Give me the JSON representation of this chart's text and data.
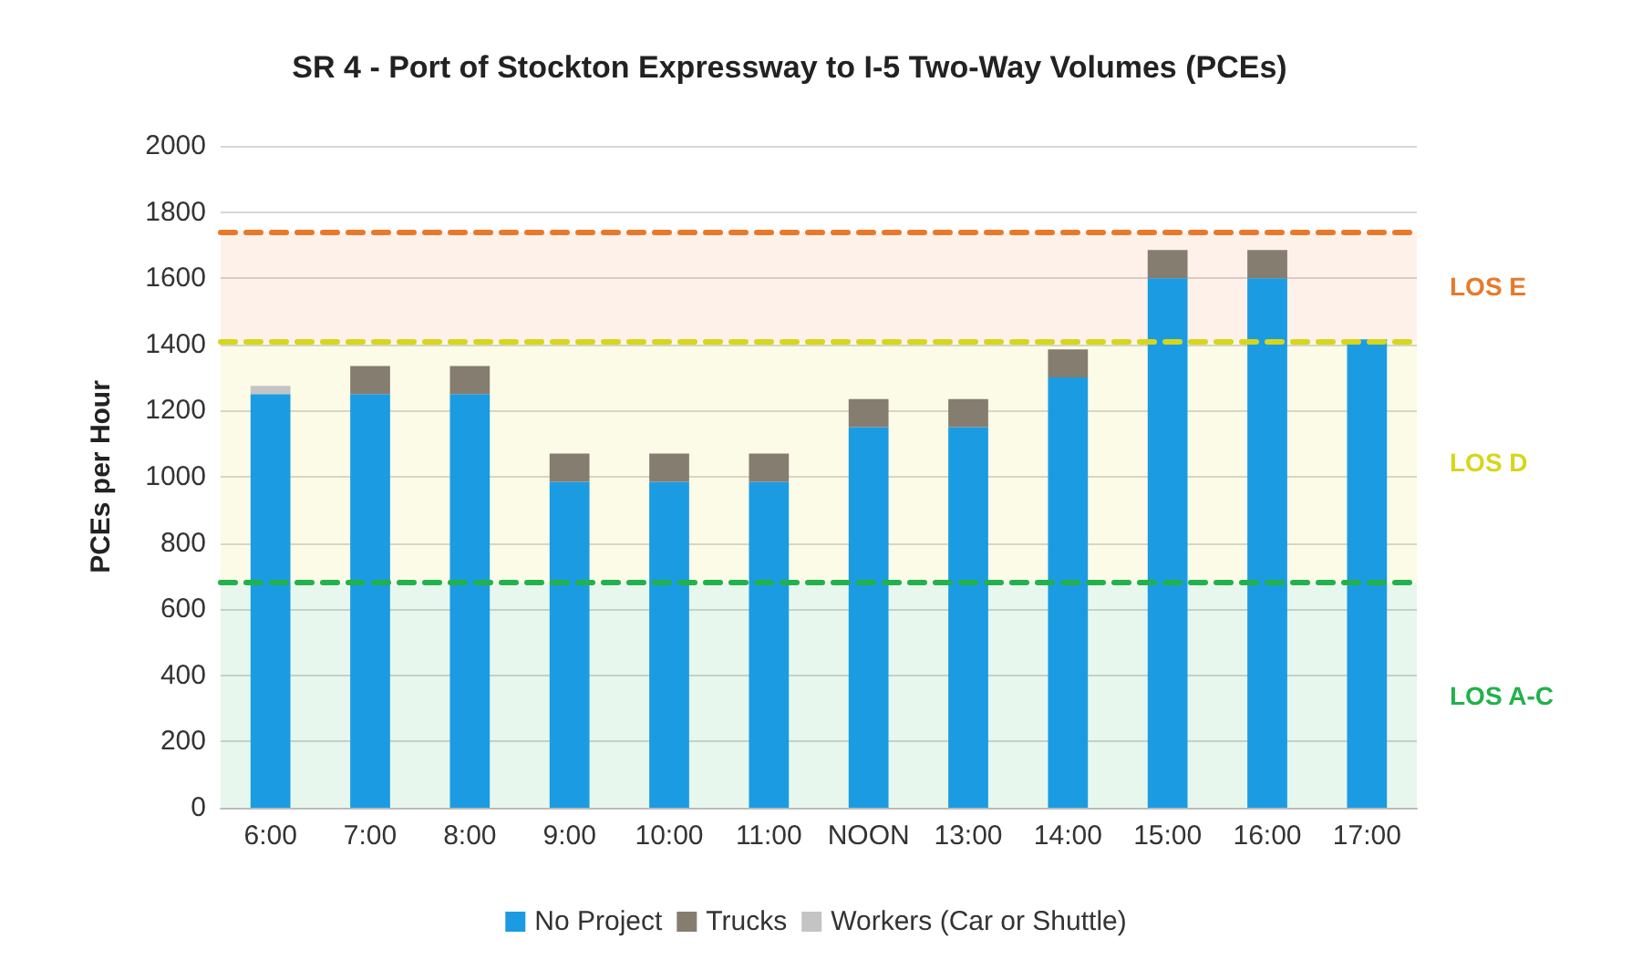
{
  "chart_data": {
    "type": "bar",
    "title": "SR 4 - Port of Stockton Expressway to I-5 Two-Way Volumes (PCEs)",
    "ylabel": "PCEs per Hour",
    "categories": [
      "6:00",
      "7:00",
      "8:00",
      "9:00",
      "10:00",
      "11:00",
      "NOON",
      "13:00",
      "14:00",
      "15:00",
      "16:00",
      "17:00"
    ],
    "stacked": true,
    "series": [
      {
        "name": "No Project",
        "color": "#1b9ce2",
        "values": [
          1250,
          1250,
          1250,
          985,
          985,
          985,
          1150,
          1150,
          1300,
          1600,
          1600,
          1415
        ]
      },
      {
        "name": "Trucks",
        "color": "#857d70",
        "values": [
          0,
          85,
          85,
          85,
          85,
          85,
          85,
          85,
          85,
          85,
          85,
          0
        ]
      },
      {
        "name": "Workers (Car or Shuttle)",
        "color": "#c4c4c4",
        "values": [
          25,
          0,
          0,
          0,
          0,
          0,
          0,
          0,
          0,
          0,
          0,
          0
        ]
      }
    ],
    "ylim": [
      0,
      2000
    ],
    "yticks": [
      0,
      200,
      400,
      600,
      800,
      1000,
      1200,
      1400,
      1600,
      1800,
      2000
    ],
    "grid": "y",
    "legend": "bottom",
    "ref_lines": [
      {
        "axis": "y",
        "value": 1740,
        "color": "#e8792a",
        "line_style": "dashed"
      },
      {
        "axis": "y",
        "value": 1410,
        "color": "#d6d61c",
        "line_style": "dashed"
      },
      {
        "axis": "y",
        "value": 680,
        "color": "#22b14c",
        "line_style": "dashed"
      }
    ],
    "bands": [
      {
        "axis": "y",
        "from": 1410,
        "to": 1740,
        "label": "LOS E",
        "color": "#e8792a"
      },
      {
        "axis": "y",
        "from": 680,
        "to": 1410,
        "label": "LOS D",
        "color": "#d6d61c"
      },
      {
        "axis": "y",
        "from": 0,
        "to": 680,
        "label": "LOS A-C",
        "color": "#22b14c"
      }
    ]
  }
}
